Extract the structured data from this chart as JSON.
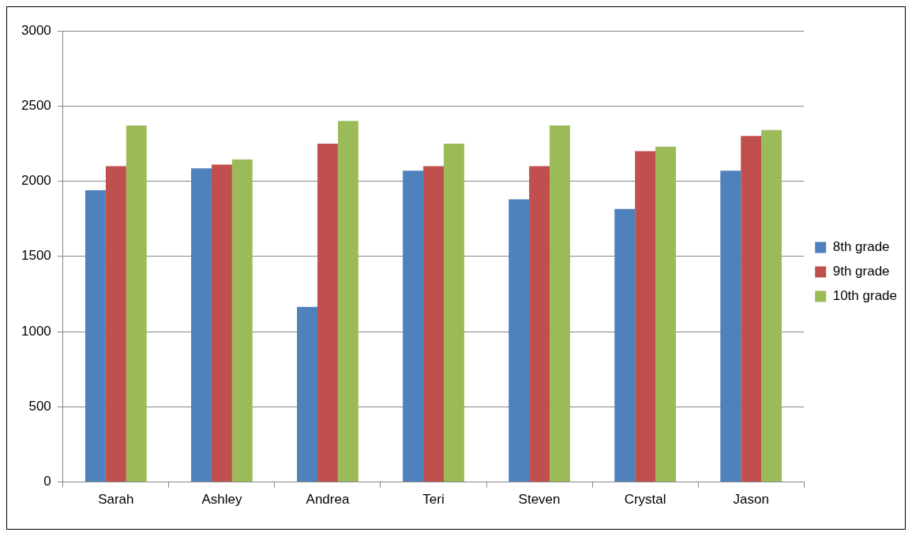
{
  "chart_data": {
    "type": "bar",
    "categories": [
      "Sarah",
      "Ashley",
      "Andrea",
      "Teri",
      "Steven",
      "Crystal",
      "Jason"
    ],
    "series": [
      {
        "name": "8th grade",
        "color": "#4f81bd",
        "values": [
          1940,
          2085,
          1165,
          2070,
          1880,
          1815,
          2070
        ]
      },
      {
        "name": "9th grade",
        "color": "#c0504d",
        "values": [
          2100,
          2110,
          2250,
          2100,
          2100,
          2200,
          2300
        ]
      },
      {
        "name": "10th grade",
        "color": "#9bbb59",
        "values": [
          2370,
          2145,
          2400,
          2250,
          2370,
          2230,
          2340
        ]
      }
    ],
    "ylim": [
      0,
      3000
    ],
    "yticks": [
      0,
      500,
      1000,
      1500,
      2000,
      2500,
      3000
    ],
    "grid": "y",
    "legend": "right"
  }
}
